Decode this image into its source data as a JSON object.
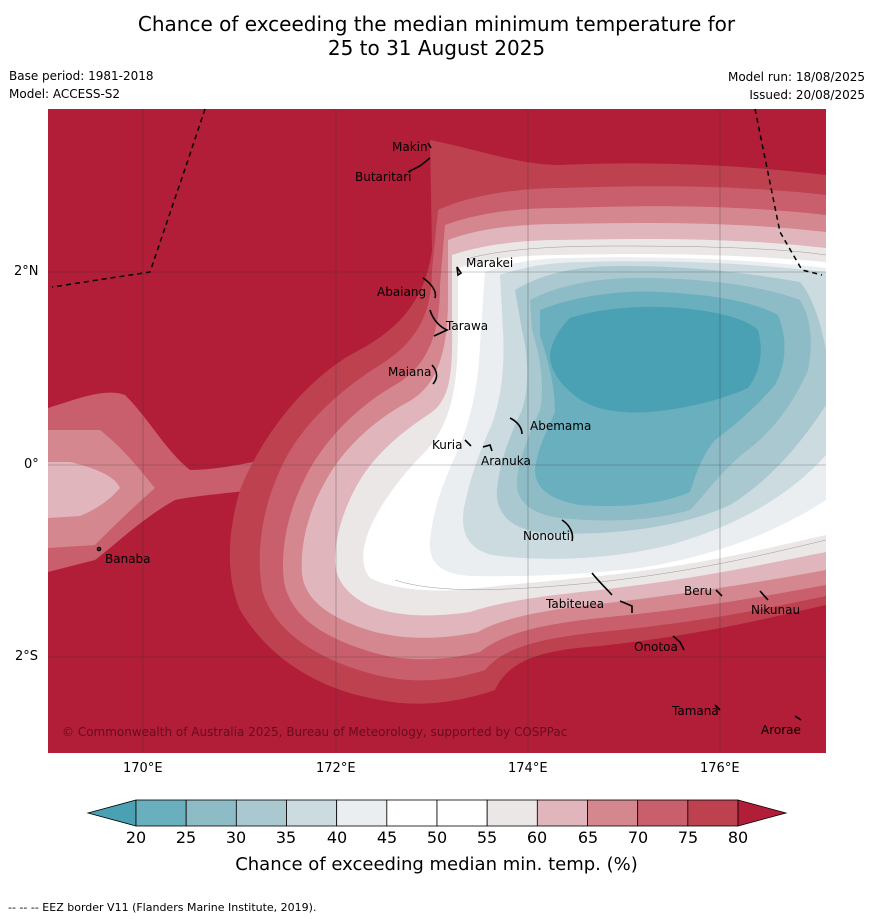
{
  "title": {
    "line1": "Chance of exceeding the median minimum temperature for",
    "line2": "25 to 31 August 2025"
  },
  "meta": {
    "base_period": "Base period: 1981-2018",
    "model": "Model: ACCESS-S2",
    "model_run": "Model run: 18/08/2025",
    "issued": "Issued: 20/08/2025"
  },
  "map": {
    "lon_labels": [
      "170°E",
      "172°E",
      "174°E",
      "176°E"
    ],
    "lat_labels": [
      "2°N",
      "0°",
      "2°S"
    ],
    "copyright": "© Commonwealth of Australia 2025, Bureau of Meteorology, supported by COSPPac",
    "islands": [
      "Makin",
      "Butaritari",
      "Marakei",
      "Abaiang",
      "Tarawa",
      "Maiana",
      "Abemama",
      "Kuria",
      "Aranuka",
      "Nonouti",
      "Tabiteuea",
      "Beru",
      "Nikunau",
      "Onotoa",
      "Tamana",
      "Arorae",
      "Banaba"
    ]
  },
  "colorbar": {
    "title": "Chance of exceeding median min. temp. (%)",
    "ticks": [
      "20",
      "25",
      "30",
      "35",
      "40",
      "45",
      "50",
      "55",
      "60",
      "65",
      "70",
      "75",
      "80"
    ],
    "colors": [
      "#4aa1b3",
      "#6aafbd",
      "#8dbbc6",
      "#aac8cf",
      "#cbdbe0",
      "#eaeef1",
      "#ffffff",
      "#ffffff",
      "#ebe7e7",
      "#e0b5bc",
      "#d4878f",
      "#c95f6c",
      "#be4150",
      "#b21d38"
    ]
  },
  "footer": "--  --  -- EEZ border V11 (Flanders Marine Institute, 2019)."
}
